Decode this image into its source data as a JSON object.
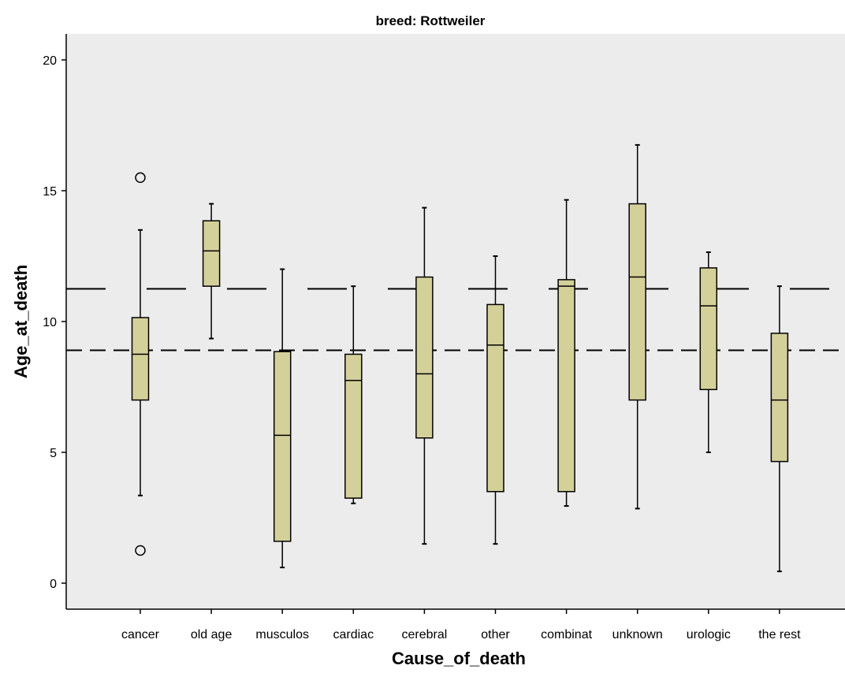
{
  "chart_data": {
    "type": "boxplot",
    "title": "breed: Rottweiler",
    "xlabel": "Cause_of_death",
    "ylabel": "Age_at_death",
    "ylim": [
      -1,
      21
    ],
    "yticks": [
      0,
      5,
      10,
      15,
      20
    ],
    "categories": [
      "cancer",
      "old age",
      "musculos",
      "cardiac",
      "cerebral",
      "other",
      "combinat",
      "unknown",
      "urologic",
      "the rest"
    ],
    "boxes": [
      {
        "category": "cancer",
        "whisker_low": 3.35,
        "q1": 7.0,
        "median": 8.75,
        "q3": 10.15,
        "whisker_high": 13.5,
        "outliers": [
          15.5,
          1.25
        ]
      },
      {
        "category": "old age",
        "whisker_low": 9.35,
        "q1": 11.35,
        "median": 12.7,
        "q3": 13.85,
        "whisker_high": 14.5,
        "outliers": []
      },
      {
        "category": "musculos",
        "whisker_low": 0.6,
        "q1": 1.6,
        "median": 5.65,
        "q3": 8.85,
        "whisker_high": 12.0,
        "outliers": []
      },
      {
        "category": "cardiac",
        "whisker_low": 3.05,
        "q1": 3.25,
        "median": 7.75,
        "q3": 8.75,
        "whisker_high": 11.35,
        "outliers": []
      },
      {
        "category": "cerebral",
        "whisker_low": 1.5,
        "q1": 5.55,
        "median": 8.0,
        "q3": 11.7,
        "whisker_high": 14.35,
        "outliers": []
      },
      {
        "category": "other",
        "whisker_low": 1.5,
        "q1": 3.5,
        "median": 9.1,
        "q3": 10.65,
        "whisker_high": 12.5,
        "outliers": []
      },
      {
        "category": "combinat",
        "whisker_low": 2.95,
        "q1": 3.5,
        "median": 11.35,
        "q3": 11.6,
        "whisker_high": 14.65,
        "outliers": []
      },
      {
        "category": "unknown",
        "whisker_low": 2.85,
        "q1": 7.0,
        "median": 11.7,
        "q3": 14.5,
        "whisker_high": 16.75,
        "outliers": []
      },
      {
        "category": "urologic",
        "whisker_low": 5.0,
        "q1": 7.4,
        "median": 10.6,
        "q3": 12.05,
        "whisker_high": 12.65,
        "outliers": []
      },
      {
        "category": "the rest",
        "whisker_low": 0.45,
        "q1": 4.65,
        "median": 7.0,
        "q3": 9.55,
        "whisker_high": 11.35,
        "outliers": []
      }
    ],
    "reference_lines": [
      {
        "y": 11.25,
        "style": "long-dash"
      },
      {
        "y": 8.9,
        "style": "short-dash"
      }
    ],
    "grid": false,
    "legend": "none",
    "colors": {
      "plot_background": "#ececec",
      "box_fill": "#d4d09a",
      "stroke": "#000000"
    }
  }
}
